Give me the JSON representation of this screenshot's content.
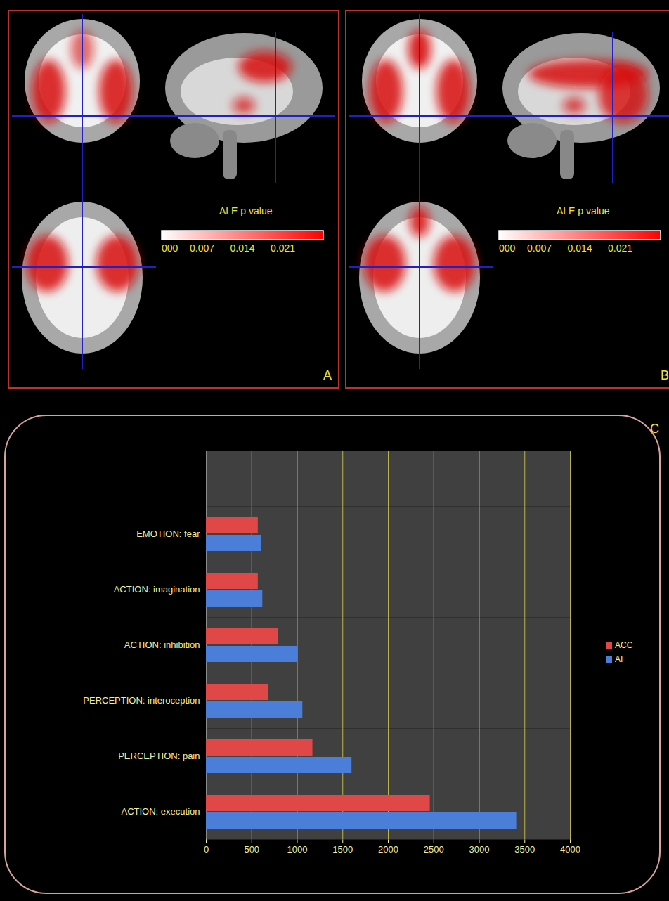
{
  "chart_data": [
    {
      "type": "brain_map",
      "panel": "A",
      "colorbar": {
        "label": "ALE p value",
        "range": [
          0,
          0.028
        ],
        "ticks": [
          {
            "value": 0,
            "label": "000"
          },
          0.007,
          0.014,
          0.021
        ]
      }
    },
    {
      "type": "brain_map",
      "panel": "B",
      "colorbar": {
        "label": "ALE p value",
        "range": [
          0,
          0.028
        ],
        "ticks": [
          {
            "value": 0,
            "label": "000"
          },
          0.007,
          0.014,
          0.021
        ]
      }
    },
    {
      "type": "bar",
      "panel": "C",
      "orientation": "horizontal",
      "categories": [
        null,
        "EMOTION: fear",
        "ACTION: imagination",
        "ACTION: inhibition",
        "PERCEPTION: interoception",
        "PERCEPTION: pain",
        "ACTION: execution"
      ],
      "series": [
        {
          "name": "ACC",
          "color": "#e04848",
          "values": [
            null,
            570,
            570,
            790,
            680,
            1170,
            2460
          ]
        },
        {
          "name": "AI",
          "color": "#4a7ed8",
          "values": [
            null,
            610,
            620,
            1000,
            1060,
            1600,
            3410
          ]
        }
      ],
      "xlim": [
        0,
        4000
      ],
      "xticks": [
        0,
        500,
        1000,
        1500,
        2000,
        2500,
        3000,
        3500,
        4000
      ],
      "grid": true,
      "legend": "right"
    }
  ]
}
